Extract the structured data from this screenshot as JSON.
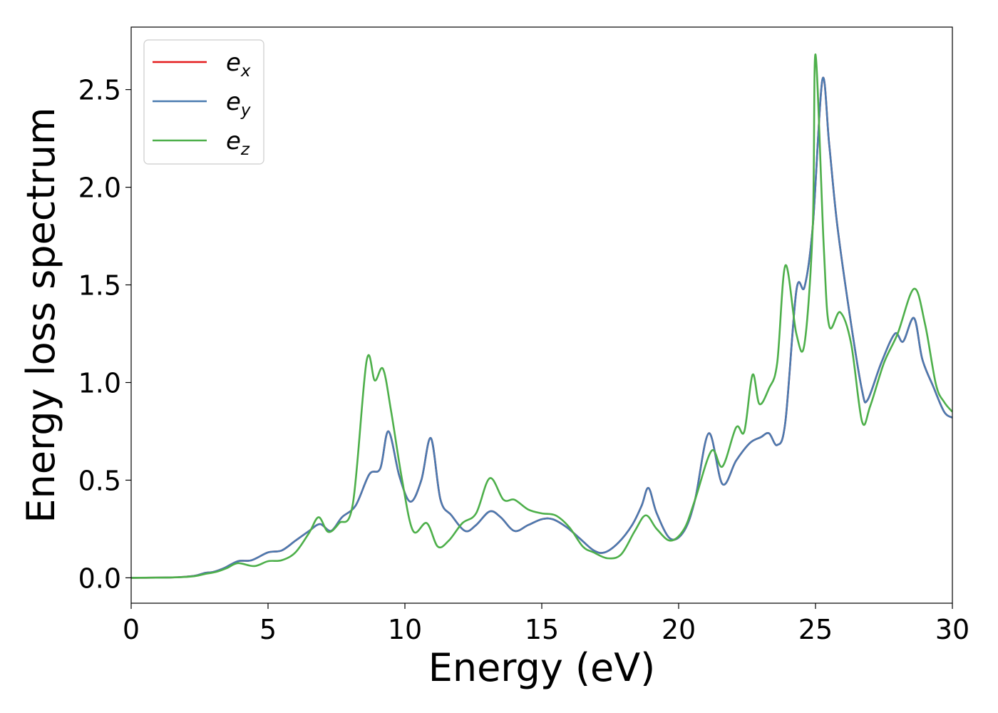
{
  "chart_data": {
    "type": "line",
    "xlabel": "Energy (eV)",
    "ylabel": "Energy loss spectrum",
    "xlim": [
      0,
      30
    ],
    "ylim": [
      -0.13,
      2.82
    ],
    "xticks": [
      "0",
      "5",
      "10",
      "15",
      "20",
      "25",
      "30"
    ],
    "yticks": [
      "0.0",
      "0.5",
      "1.0",
      "1.5",
      "2.0",
      "2.5"
    ],
    "grid": false,
    "legend_position": "top-left",
    "legend": [
      {
        "base": "e",
        "sub": "x"
      },
      {
        "base": "e",
        "sub": "y"
      },
      {
        "base": "e",
        "sub": "z"
      }
    ],
    "series": [
      {
        "name": "e_x",
        "color": "#e41a1c",
        "points": [
          [
            0,
            0
          ],
          [
            1.5,
            0.002
          ],
          [
            2.3,
            0.01
          ],
          [
            2.7,
            0.025
          ],
          [
            3.0,
            0.03
          ],
          [
            3.4,
            0.05
          ],
          [
            3.9,
            0.085
          ],
          [
            4.4,
            0.09
          ],
          [
            5.0,
            0.13
          ],
          [
            5.5,
            0.14
          ],
          [
            6.0,
            0.19
          ],
          [
            6.5,
            0.24
          ],
          [
            6.9,
            0.275
          ],
          [
            7.3,
            0.24
          ],
          [
            7.7,
            0.31
          ],
          [
            8.2,
            0.37
          ],
          [
            8.7,
            0.53
          ],
          [
            9.1,
            0.56
          ],
          [
            9.4,
            0.75
          ],
          [
            9.8,
            0.52
          ],
          [
            10.2,
            0.39
          ],
          [
            10.6,
            0.5
          ],
          [
            10.95,
            0.715
          ],
          [
            11.3,
            0.4
          ],
          [
            11.7,
            0.32
          ],
          [
            12.2,
            0.24
          ],
          [
            12.6,
            0.27
          ],
          [
            13.1,
            0.34
          ],
          [
            13.5,
            0.31
          ],
          [
            14.0,
            0.24
          ],
          [
            14.5,
            0.27
          ],
          [
            15.0,
            0.3
          ],
          [
            15.4,
            0.3
          ],
          [
            15.9,
            0.26
          ],
          [
            16.4,
            0.2
          ],
          [
            16.9,
            0.14
          ],
          [
            17.3,
            0.13
          ],
          [
            17.8,
            0.18
          ],
          [
            18.3,
            0.27
          ],
          [
            18.65,
            0.37
          ],
          [
            18.9,
            0.46
          ],
          [
            19.2,
            0.33
          ],
          [
            19.7,
            0.2
          ],
          [
            20.2,
            0.24
          ],
          [
            20.6,
            0.4
          ],
          [
            21.1,
            0.74
          ],
          [
            21.6,
            0.48
          ],
          [
            22.1,
            0.6
          ],
          [
            22.6,
            0.69
          ],
          [
            23.0,
            0.72
          ],
          [
            23.3,
            0.74
          ],
          [
            23.6,
            0.68
          ],
          [
            23.9,
            0.8
          ],
          [
            24.3,
            1.47
          ],
          [
            24.6,
            1.49
          ],
          [
            24.9,
            1.8
          ],
          [
            25.25,
            2.55
          ],
          [
            25.5,
            2.22
          ],
          [
            25.8,
            1.8
          ],
          [
            26.3,
            1.3
          ],
          [
            26.7,
            0.96
          ],
          [
            26.9,
            0.91
          ],
          [
            27.4,
            1.1
          ],
          [
            27.9,
            1.25
          ],
          [
            28.2,
            1.21
          ],
          [
            28.6,
            1.33
          ],
          [
            28.9,
            1.12
          ],
          [
            29.3,
            0.98
          ],
          [
            29.7,
            0.85
          ],
          [
            30.0,
            0.82
          ]
        ]
      },
      {
        "name": "e_y",
        "color": "#4a7ab0",
        "points": [
          [
            0,
            0
          ],
          [
            1.5,
            0.002
          ],
          [
            2.3,
            0.01
          ],
          [
            2.7,
            0.025
          ],
          [
            3.0,
            0.03
          ],
          [
            3.4,
            0.05
          ],
          [
            3.9,
            0.085
          ],
          [
            4.4,
            0.09
          ],
          [
            5.0,
            0.13
          ],
          [
            5.5,
            0.14
          ],
          [
            6.0,
            0.19
          ],
          [
            6.5,
            0.24
          ],
          [
            6.9,
            0.275
          ],
          [
            7.3,
            0.24
          ],
          [
            7.7,
            0.31
          ],
          [
            8.2,
            0.37
          ],
          [
            8.7,
            0.53
          ],
          [
            9.1,
            0.56
          ],
          [
            9.4,
            0.75
          ],
          [
            9.8,
            0.52
          ],
          [
            10.2,
            0.39
          ],
          [
            10.6,
            0.5
          ],
          [
            10.95,
            0.715
          ],
          [
            11.3,
            0.4
          ],
          [
            11.7,
            0.32
          ],
          [
            12.2,
            0.24
          ],
          [
            12.6,
            0.27
          ],
          [
            13.1,
            0.34
          ],
          [
            13.5,
            0.31
          ],
          [
            14.0,
            0.24
          ],
          [
            14.5,
            0.27
          ],
          [
            15.0,
            0.3
          ],
          [
            15.4,
            0.3
          ],
          [
            15.9,
            0.26
          ],
          [
            16.4,
            0.2
          ],
          [
            16.9,
            0.14
          ],
          [
            17.3,
            0.13
          ],
          [
            17.8,
            0.18
          ],
          [
            18.3,
            0.27
          ],
          [
            18.65,
            0.37
          ],
          [
            18.9,
            0.46
          ],
          [
            19.2,
            0.33
          ],
          [
            19.7,
            0.2
          ],
          [
            20.2,
            0.24
          ],
          [
            20.6,
            0.4
          ],
          [
            21.1,
            0.74
          ],
          [
            21.6,
            0.48
          ],
          [
            22.1,
            0.6
          ],
          [
            22.6,
            0.69
          ],
          [
            23.0,
            0.72
          ],
          [
            23.3,
            0.74
          ],
          [
            23.6,
            0.68
          ],
          [
            23.9,
            0.8
          ],
          [
            24.3,
            1.47
          ],
          [
            24.6,
            1.49
          ],
          [
            24.9,
            1.8
          ],
          [
            25.25,
            2.55
          ],
          [
            25.5,
            2.22
          ],
          [
            25.8,
            1.8
          ],
          [
            26.3,
            1.3
          ],
          [
            26.7,
            0.96
          ],
          [
            26.9,
            0.91
          ],
          [
            27.4,
            1.1
          ],
          [
            27.9,
            1.25
          ],
          [
            28.2,
            1.21
          ],
          [
            28.6,
            1.33
          ],
          [
            28.9,
            1.12
          ],
          [
            29.3,
            0.98
          ],
          [
            29.7,
            0.85
          ],
          [
            30.0,
            0.82
          ]
        ]
      },
      {
        "name": "e_z",
        "color": "#4daf4a",
        "points": [
          [
            0,
            0
          ],
          [
            1.5,
            0.002
          ],
          [
            2.3,
            0.008
          ],
          [
            2.7,
            0.02
          ],
          [
            3.1,
            0.03
          ],
          [
            3.5,
            0.05
          ],
          [
            3.9,
            0.075
          ],
          [
            4.5,
            0.06
          ],
          [
            5.0,
            0.085
          ],
          [
            5.5,
            0.09
          ],
          [
            6.0,
            0.13
          ],
          [
            6.5,
            0.23
          ],
          [
            6.85,
            0.31
          ],
          [
            7.2,
            0.235
          ],
          [
            7.6,
            0.28
          ],
          [
            8.1,
            0.38
          ],
          [
            8.6,
            1.11
          ],
          [
            8.9,
            1.01
          ],
          [
            9.2,
            1.07
          ],
          [
            9.5,
            0.85
          ],
          [
            9.9,
            0.5
          ],
          [
            10.3,
            0.24
          ],
          [
            10.8,
            0.28
          ],
          [
            11.2,
            0.16
          ],
          [
            11.6,
            0.19
          ],
          [
            12.1,
            0.28
          ],
          [
            12.6,
            0.33
          ],
          [
            13.1,
            0.51
          ],
          [
            13.6,
            0.4
          ],
          [
            14.0,
            0.4
          ],
          [
            14.5,
            0.35
          ],
          [
            15.0,
            0.33
          ],
          [
            15.5,
            0.32
          ],
          [
            16.0,
            0.26
          ],
          [
            16.5,
            0.16
          ],
          [
            16.9,
            0.13
          ],
          [
            17.4,
            0.1
          ],
          [
            17.9,
            0.12
          ],
          [
            18.4,
            0.24
          ],
          [
            18.8,
            0.32
          ],
          [
            19.2,
            0.25
          ],
          [
            19.7,
            0.19
          ],
          [
            20.2,
            0.25
          ],
          [
            20.6,
            0.4
          ],
          [
            21.2,
            0.65
          ],
          [
            21.6,
            0.57
          ],
          [
            22.1,
            0.77
          ],
          [
            22.4,
            0.75
          ],
          [
            22.7,
            1.04
          ],
          [
            22.95,
            0.89
          ],
          [
            23.3,
            0.97
          ],
          [
            23.6,
            1.1
          ],
          [
            23.9,
            1.6
          ],
          [
            24.3,
            1.25
          ],
          [
            24.6,
            1.2
          ],
          [
            24.9,
            1.8
          ],
          [
            25.0,
            2.68
          ],
          [
            25.3,
            1.7
          ],
          [
            25.5,
            1.29
          ],
          [
            25.9,
            1.36
          ],
          [
            26.3,
            1.2
          ],
          [
            26.7,
            0.8
          ],
          [
            27.0,
            0.88
          ],
          [
            27.5,
            1.1
          ],
          [
            28.0,
            1.25
          ],
          [
            28.6,
            1.48
          ],
          [
            29.0,
            1.3
          ],
          [
            29.4,
            0.99
          ],
          [
            29.7,
            0.9
          ],
          [
            30.0,
            0.85
          ]
        ]
      }
    ]
  }
}
